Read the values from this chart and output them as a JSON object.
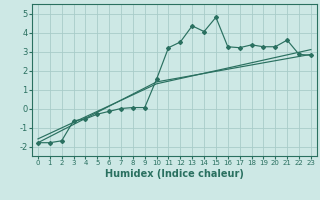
{
  "xlabel": "Humidex (Indice chaleur)",
  "background_color": "#cde8e5",
  "grid_color": "#a8ccc9",
  "line_color": "#2a7060",
  "xlim": [
    -0.5,
    23.5
  ],
  "ylim": [
    -2.5,
    5.5
  ],
  "yticks": [
    -2,
    -1,
    0,
    1,
    2,
    3,
    4,
    5
  ],
  "xticks": [
    0,
    1,
    2,
    3,
    4,
    5,
    6,
    7,
    8,
    9,
    10,
    11,
    12,
    13,
    14,
    15,
    16,
    17,
    18,
    19,
    20,
    21,
    22,
    23
  ],
  "x_data": [
    0,
    1,
    2,
    3,
    4,
    5,
    6,
    7,
    8,
    9,
    10,
    11,
    12,
    13,
    14,
    15,
    16,
    17,
    18,
    19,
    20,
    21,
    22,
    23
  ],
  "y_main": [
    -1.8,
    -1.8,
    -1.7,
    -0.65,
    -0.55,
    -0.3,
    -0.15,
    0.0,
    0.05,
    0.05,
    1.55,
    3.2,
    3.5,
    4.35,
    4.05,
    4.8,
    3.25,
    3.2,
    3.35,
    3.25,
    3.25,
    3.6,
    2.85,
    2.8
  ],
  "line1_x": [
    0,
    10,
    23
  ],
  "line1_y": [
    -1.8,
    1.4,
    2.85
  ],
  "line2_x": [
    0,
    10,
    23
  ],
  "line2_y": [
    -1.6,
    1.3,
    3.1
  ],
  "xlabel_fontsize": 7,
  "tick_fontsize": 5,
  "ytick_fontsize": 6
}
